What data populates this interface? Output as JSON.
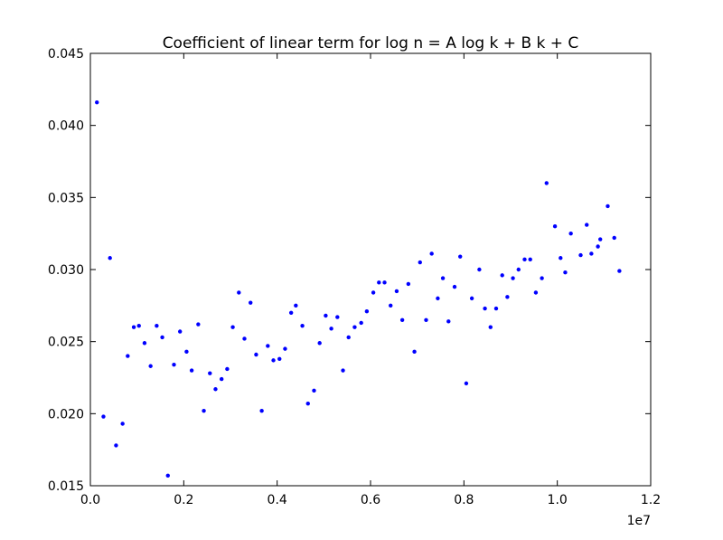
{
  "chart_data": {
    "type": "scatter",
    "title": "Coefficient of linear term for log n = A log k + B k + C",
    "xlabel": "",
    "ylabel": "",
    "x_offset_label": "1e7",
    "xlim": [
      0.0,
      1.2
    ],
    "ylim": [
      0.015,
      0.045
    ],
    "xticks": [
      "0.0",
      "0.2",
      "0.4",
      "0.6",
      "0.8",
      "1.0",
      "1.2"
    ],
    "yticks": [
      "0.015",
      "0.020",
      "0.025",
      "0.030",
      "0.035",
      "0.040",
      "0.045"
    ],
    "grid": false,
    "legend": "none",
    "marker_color": "#0000ff",
    "series": [
      {
        "points": [
          [
            0.014,
            0.0416
          ],
          [
            0.028,
            0.0198
          ],
          [
            0.042,
            0.0308
          ],
          [
            0.055,
            0.0178
          ],
          [
            0.069,
            0.0193
          ],
          [
            0.08,
            0.024
          ],
          [
            0.093,
            0.026
          ],
          [
            0.104,
            0.0261
          ],
          [
            0.116,
            0.0249
          ],
          [
            0.129,
            0.0233
          ],
          [
            0.142,
            0.0261
          ],
          [
            0.154,
            0.0253
          ],
          [
            0.166,
            0.0157
          ],
          [
            0.179,
            0.0234
          ],
          [
            0.192,
            0.0257
          ],
          [
            0.206,
            0.0243
          ],
          [
            0.217,
            0.023
          ],
          [
            0.231,
            0.0262
          ],
          [
            0.243,
            0.0202
          ],
          [
            0.256,
            0.0228
          ],
          [
            0.268,
            0.0217
          ],
          [
            0.281,
            0.0224
          ],
          [
            0.293,
            0.0231
          ],
          [
            0.305,
            0.026
          ],
          [
            0.318,
            0.0284
          ],
          [
            0.33,
            0.0252
          ],
          [
            0.343,
            0.0277
          ],
          [
            0.355,
            0.0241
          ],
          [
            0.367,
            0.0202
          ],
          [
            0.38,
            0.0247
          ],
          [
            0.392,
            0.0237
          ],
          [
            0.405,
            0.0238
          ],
          [
            0.417,
            0.0245
          ],
          [
            0.43,
            0.027
          ],
          [
            0.44,
            0.0275
          ],
          [
            0.454,
            0.0261
          ],
          [
            0.466,
            0.0207
          ],
          [
            0.479,
            0.0216
          ],
          [
            0.491,
            0.0249
          ],
          [
            0.504,
            0.0268
          ],
          [
            0.516,
            0.0259
          ],
          [
            0.529,
            0.0267
          ],
          [
            0.541,
            0.023
          ],
          [
            0.553,
            0.0253
          ],
          [
            0.566,
            0.026
          ],
          [
            0.58,
            0.0263
          ],
          [
            0.592,
            0.0271
          ],
          [
            0.606,
            0.0284
          ],
          [
            0.618,
            0.0291
          ],
          [
            0.63,
            0.0291
          ],
          [
            0.643,
            0.0275
          ],
          [
            0.656,
            0.0285
          ],
          [
            0.668,
            0.0265
          ],
          [
            0.681,
            0.029
          ],
          [
            0.694,
            0.0243
          ],
          [
            0.706,
            0.0305
          ],
          [
            0.719,
            0.0265
          ],
          [
            0.731,
            0.0311
          ],
          [
            0.744,
            0.028
          ],
          [
            0.755,
            0.0294
          ],
          [
            0.767,
            0.0264
          ],
          [
            0.78,
            0.0288
          ],
          [
            0.792,
            0.0309
          ],
          [
            0.805,
            0.0221
          ],
          [
            0.817,
            0.028
          ],
          [
            0.833,
            0.03
          ],
          [
            0.845,
            0.0273
          ],
          [
            0.857,
            0.026
          ],
          [
            0.869,
            0.0273
          ],
          [
            0.882,
            0.0296
          ],
          [
            0.893,
            0.0281
          ],
          [
            0.905,
            0.0294
          ],
          [
            0.917,
            0.03
          ],
          [
            0.93,
            0.0307
          ],
          [
            0.942,
            0.0307
          ],
          [
            0.954,
            0.0284
          ],
          [
            0.967,
            0.0294
          ],
          [
            0.977,
            0.036
          ],
          [
            0.995,
            0.033
          ],
          [
            1.007,
            0.0308
          ],
          [
            1.017,
            0.0298
          ],
          [
            1.029,
            0.0325
          ],
          [
            1.05,
            0.031
          ],
          [
            1.063,
            0.0331
          ],
          [
            1.073,
            0.0311
          ],
          [
            1.087,
            0.0316
          ],
          [
            1.092,
            0.0321
          ],
          [
            1.108,
            0.0344
          ],
          [
            1.122,
            0.0322
          ],
          [
            1.133,
            0.0299
          ]
        ]
      }
    ]
  }
}
